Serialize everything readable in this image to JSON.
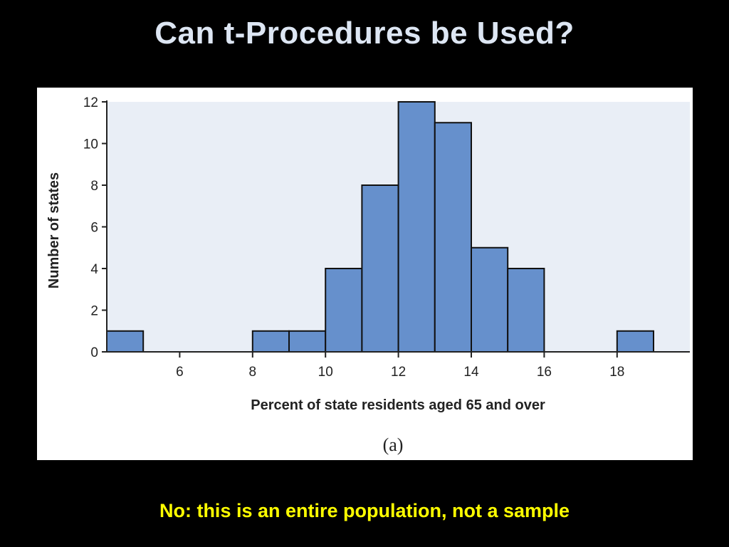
{
  "slide": {
    "title": "Can t-Procedures be Used?",
    "caption": "No:  this is an entire population, not a sample"
  },
  "colors": {
    "background": "#000000",
    "title": "#dde6f3",
    "caption": "#ffff00",
    "plot_area": "#e9eef6",
    "bar_fill": "#6690cc",
    "bar_stroke": "#111111"
  },
  "chart_data": {
    "type": "bar",
    "subtype": "histogram",
    "xlabel": "Percent of state residents aged 65 and over",
    "ylabel": "Number of states",
    "sublabel": "(a)",
    "bins": [
      {
        "x0": 4,
        "x1": 5,
        "count": 1
      },
      {
        "x0": 5,
        "x1": 6,
        "count": 0
      },
      {
        "x0": 6,
        "x1": 7,
        "count": 0
      },
      {
        "x0": 7,
        "x1": 8,
        "count": 0
      },
      {
        "x0": 8,
        "x1": 9,
        "count": 1
      },
      {
        "x0": 9,
        "x1": 10,
        "count": 1
      },
      {
        "x0": 10,
        "x1": 11,
        "count": 4
      },
      {
        "x0": 11,
        "x1": 12,
        "count": 8
      },
      {
        "x0": 12,
        "x1": 13,
        "count": 12
      },
      {
        "x0": 13,
        "x1": 14,
        "count": 11
      },
      {
        "x0": 14,
        "x1": 15,
        "count": 5
      },
      {
        "x0": 15,
        "x1": 16,
        "count": 4
      },
      {
        "x0": 16,
        "x1": 17,
        "count": 0
      },
      {
        "x0": 17,
        "x1": 18,
        "count": 0
      },
      {
        "x0": 18,
        "x1": 19,
        "count": 1
      }
    ],
    "xlim": [
      4,
      20
    ],
    "ylim": [
      0,
      12
    ],
    "xticks": [
      6,
      8,
      10,
      12,
      14,
      16,
      18
    ],
    "yticks": [
      0,
      2,
      4,
      6,
      8,
      10,
      12
    ],
    "grid": false,
    "legend": "none"
  }
}
